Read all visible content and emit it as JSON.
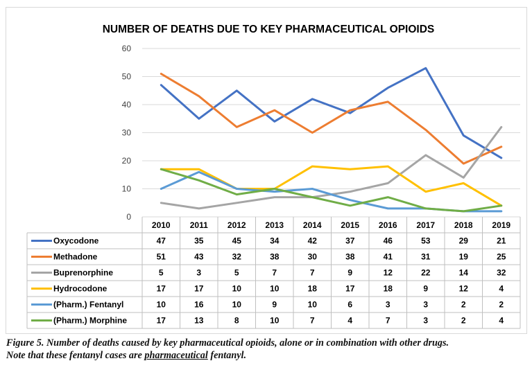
{
  "chart_data": {
    "type": "line",
    "title": "NUMBER OF DEATHS DUE TO KEY PHARMACEUTICAL OPIOIDS",
    "xlabel": "",
    "ylabel": "",
    "ylim": [
      0,
      60
    ],
    "yticks": [
      "0",
      "10",
      "20",
      "30",
      "40",
      "50",
      "60"
    ],
    "categories": [
      "2010",
      "2011",
      "2012",
      "2013",
      "2014",
      "2015",
      "2016",
      "2017",
      "2018",
      "2019"
    ],
    "grid": true,
    "legend": "data-table",
    "series": [
      {
        "name": "Oxycodone",
        "color": "#4472c4",
        "values": [
          47,
          35,
          45,
          34,
          42,
          37,
          46,
          53,
          29,
          21
        ]
      },
      {
        "name": "Methadone",
        "color": "#ed7d31",
        "values": [
          51,
          43,
          32,
          38,
          30,
          38,
          41,
          31,
          19,
          25
        ]
      },
      {
        "name": "Buprenorphine",
        "color": "#a5a5a5",
        "values": [
          5,
          3,
          5,
          7,
          7,
          9,
          12,
          22,
          14,
          32
        ]
      },
      {
        "name": "Hydrocodone",
        "color": "#ffc000",
        "values": [
          17,
          17,
          10,
          10,
          18,
          17,
          18,
          9,
          12,
          4
        ]
      },
      {
        "name": "(Pharm.) Fentanyl",
        "color": "#5b9bd5",
        "values": [
          10,
          16,
          10,
          9,
          10,
          6,
          3,
          3,
          2,
          2
        ]
      },
      {
        "name": "(Pharm.) Morphine",
        "color": "#70ad47",
        "values": [
          17,
          13,
          8,
          10,
          7,
          4,
          7,
          3,
          2,
          4
        ]
      }
    ]
  },
  "caption": {
    "line1": "Figure 5.  Number of deaths caused by key pharmaceutical opioids, alone or in combination with other drugs.",
    "line2_prefix": "Note that these fentanyl cases are ",
    "line2_underlined": "pharmaceutical",
    "line2_suffix": " fentanyl."
  }
}
